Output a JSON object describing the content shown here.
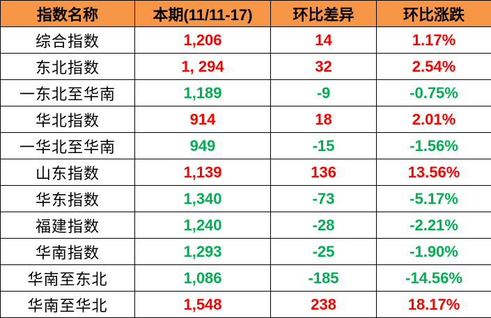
{
  "headers": [
    "指数名称",
    "本期(11/11-17)",
    "环比差异",
    "环比涨跌"
  ],
  "colors": {
    "header_bg": "#F79646",
    "up": "#FF0000",
    "down": "#00B050"
  },
  "rows": [
    {
      "name": "综合指数",
      "value": "1,206",
      "diff": "14",
      "pct": "1.17%",
      "trend": "up"
    },
    {
      "name": "东北指数",
      "value": "1, 294",
      "diff": "32",
      "pct": "2.54%",
      "trend": "up"
    },
    {
      "name": "一东北至华南",
      "value": "1,189",
      "diff": "-9",
      "pct": "-0.75%",
      "trend": "down"
    },
    {
      "name": "华北指数",
      "value": "914",
      "diff": "18",
      "pct": "2.01%",
      "trend": "up"
    },
    {
      "name": "一华北至华南",
      "value": "949",
      "diff": "-15",
      "pct": "-1.56%",
      "trend": "down"
    },
    {
      "name": "山东指数",
      "value": "1,139",
      "diff": "136",
      "pct": "13.56%",
      "trend": "up"
    },
    {
      "name": "华东指数",
      "value": "1,340",
      "diff": "-73",
      "pct": "-5.17%",
      "trend": "down"
    },
    {
      "name": "福建指数",
      "value": "1,240",
      "diff": "-28",
      "pct": "-2.21%",
      "trend": "down"
    },
    {
      "name": "华南指数",
      "value": "1,293",
      "diff": "-25",
      "pct": "-1.90%",
      "trend": "down"
    },
    {
      "name": "华南至东北",
      "value": "1,086",
      "diff": "-185",
      "pct": "-14.56%",
      "trend": "down"
    },
    {
      "name": "华南至华北",
      "value": "1,548",
      "diff": "238",
      "pct": "18.17%",
      "trend": "up"
    }
  ]
}
